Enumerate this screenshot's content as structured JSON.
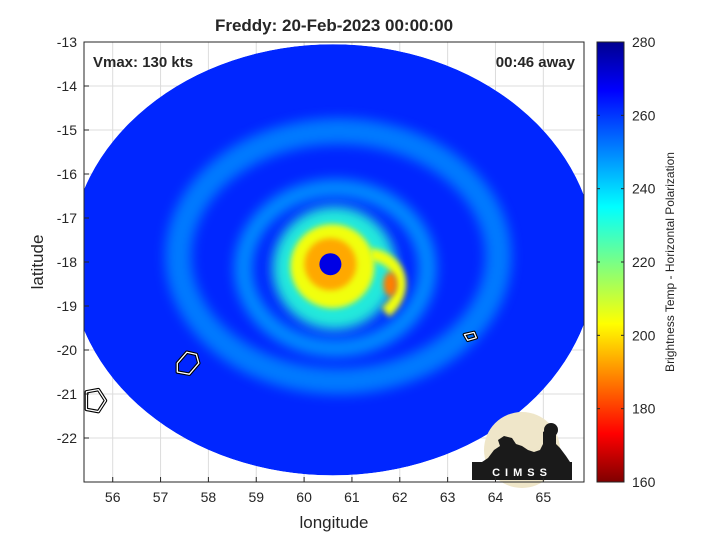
{
  "chart_data": {
    "type": "heatmap",
    "title": "Freddy: 20-Feb-2023 00:00:00",
    "xlabel": "longitude",
    "ylabel": "latitude",
    "xlim": [
      55.4,
      65.85
    ],
    "ylim": [
      -23.0,
      -13.0
    ],
    "xticks": [
      56,
      57,
      58,
      59,
      60,
      61,
      62,
      63,
      64,
      65
    ],
    "yticks": [
      -13,
      -14,
      -15,
      -16,
      -17,
      -18,
      -19,
      -20,
      -21,
      -22
    ],
    "grid": true,
    "annotations": {
      "vmax": "Vmax: 130 kts",
      "time_away": "00:46 away"
    },
    "colorbar": {
      "label": "Brightness Temp - Horizontal Polarization",
      "range": [
        160,
        280
      ],
      "ticks": [
        160,
        180,
        200,
        220,
        240,
        260,
        280
      ],
      "colormap": "jet"
    },
    "storm_center": {
      "lon": 60.55,
      "lat": -18.05
    },
    "swath": {
      "center_lon": 60.6,
      "center_lat": -17.95,
      "half_width_lon": 5.5,
      "half_height_lat": 4.9
    },
    "features": {
      "background_tb": 262,
      "rain_band_tb": 248,
      "eyewall_tb": 205,
      "core_tb": 193,
      "eye_tb": 270,
      "cold_spot_tb": 188
    },
    "coastlines": [
      {
        "name": "island-1",
        "points": [
          [
            57.35,
            -20.3
          ],
          [
            57.55,
            -20.05
          ],
          [
            57.75,
            -20.1
          ],
          [
            57.8,
            -20.3
          ],
          [
            57.6,
            -20.55
          ],
          [
            57.35,
            -20.5
          ]
        ]
      },
      {
        "name": "island-2",
        "points": [
          [
            55.45,
            -20.95
          ],
          [
            55.7,
            -20.9
          ],
          [
            55.85,
            -21.15
          ],
          [
            55.7,
            -21.4
          ],
          [
            55.45,
            -21.35
          ]
        ]
      },
      {
        "name": "island-3",
        "points": [
          [
            63.35,
            -19.65
          ],
          [
            63.55,
            -19.6
          ],
          [
            63.6,
            -19.72
          ],
          [
            63.42,
            -19.78
          ]
        ]
      }
    ],
    "logo_text": "CIMSS"
  }
}
